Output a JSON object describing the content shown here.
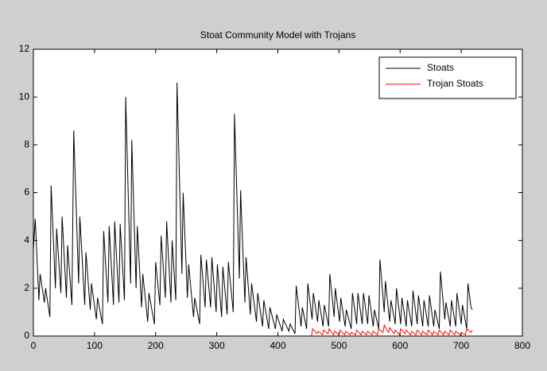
{
  "chart_data": {
    "type": "line",
    "title": "Stoat Community Model with Trojans",
    "xlim": [
      0,
      800
    ],
    "xticks": [
      0,
      100,
      200,
      300,
      400,
      500,
      600,
      700,
      800
    ],
    "ylim": [
      0,
      12
    ],
    "yticks": [
      0,
      2,
      4,
      6,
      8,
      10,
      12
    ],
    "legend": "northeast",
    "series": [
      {
        "name": "Stoats",
        "color": "#000000",
        "x": [
          0,
          3,
          9,
          11,
          18,
          20,
          27,
          29,
          36,
          38,
          45,
          47,
          54,
          56,
          63,
          66,
          74,
          76,
          84,
          86,
          93,
          95,
          103,
          105,
          113,
          115,
          122,
          124,
          131,
          133,
          140,
          142,
          149,
          151,
          159,
          161,
          168,
          170,
          177,
          179,
          187,
          189,
          198,
          200,
          207,
          209,
          216,
          218,
          225,
          227,
          233,
          235,
          243,
          245,
          252,
          254,
          262,
          264,
          272,
          274,
          281,
          283,
          290,
          292,
          299,
          301,
          308,
          310,
          317,
          319,
          327,
          329,
          337,
          339,
          346,
          348,
          355,
          357,
          365,
          367,
          375,
          377,
          385,
          387,
          396,
          398,
          407,
          409,
          418,
          420,
          428,
          430,
          438,
          440,
          447,
          449,
          456,
          458,
          465,
          467,
          474,
          476,
          483,
          485,
          492,
          494,
          501,
          503,
          510,
          512,
          520,
          522,
          529,
          531,
          538,
          540,
          547,
          549,
          556,
          558,
          565,
          567,
          574,
          576,
          583,
          585,
          592,
          594,
          601,
          603,
          610,
          612,
          619,
          621,
          628,
          630,
          637,
          639,
          646,
          648,
          655,
          657,
          664,
          666,
          673,
          675,
          682,
          684,
          691,
          693,
          700,
          702,
          709,
          711,
          716,
          718
        ],
        "values": [
          3.6,
          4.9,
          1.5,
          2.6,
          1.4,
          2.0,
          0.8,
          6.3,
          2.0,
          4.5,
          1.8,
          5.0,
          1.6,
          3.8,
          1.3,
          8.6,
          2.2,
          5.0,
          1.3,
          3.5,
          1.1,
          2.2,
          0.7,
          1.6,
          0.5,
          4.4,
          1.4,
          4.6,
          1.3,
          4.8,
          1.4,
          4.7,
          1.5,
          10.0,
          2.2,
          8.2,
          2.0,
          4.6,
          1.2,
          2.6,
          0.6,
          1.8,
          0.5,
          3.1,
          1.3,
          4.2,
          1.6,
          4.8,
          1.4,
          4.0,
          1.5,
          10.6,
          2.6,
          6.0,
          1.6,
          3.0,
          0.8,
          1.6,
          0.5,
          3.4,
          1.2,
          3.2,
          1.2,
          3.3,
          1.0,
          3.0,
          0.8,
          2.9,
          0.9,
          3.1,
          1.0,
          9.3,
          2.4,
          6.1,
          1.4,
          3.3,
          0.9,
          2.2,
          0.6,
          1.8,
          0.4,
          1.5,
          0.3,
          1.2,
          0.3,
          0.9,
          0.2,
          0.7,
          0.2,
          0.5,
          0.1,
          2.1,
          0.4,
          1.2,
          0.3,
          2.2,
          0.7,
          1.8,
          0.6,
          1.5,
          0.4,
          1.3,
          0.4,
          2.6,
          0.8,
          2.0,
          0.6,
          1.6,
          0.4,
          1.1,
          0.3,
          1.8,
          0.5,
          1.8,
          0.5,
          1.8,
          0.5,
          1.7,
          0.4,
          1.1,
          0.3,
          3.2,
          1.0,
          2.3,
          0.6,
          1.5,
          0.5,
          2.0,
          0.5,
          1.6,
          0.4,
          1.5,
          0.4,
          1.9,
          0.5,
          1.7,
          0.4,
          1.5,
          0.4,
          1.7,
          0.4,
          1.1,
          0.3,
          2.7,
          0.7,
          1.4,
          0.4,
          1.5,
          0.4,
          1.8,
          0.5,
          1.3,
          0.3,
          2.2,
          1.2,
          1.1
        ]
      },
      {
        "name": "Trojan Stoats",
        "color": "#ff0000",
        "x": [
          0,
          455,
          457,
          464,
          466,
          473,
          475,
          482,
          484,
          491,
          493,
          500,
          502,
          509,
          511,
          518,
          520,
          527,
          529,
          536,
          538,
          545,
          547,
          554,
          556,
          563,
          565,
          572,
          574,
          581,
          583,
          590,
          592,
          599,
          601,
          608,
          610,
          617,
          619,
          626,
          628,
          635,
          637,
          644,
          646,
          653,
          655,
          662,
          664,
          671,
          673,
          680,
          682,
          689,
          691,
          698,
          700,
          707,
          709,
          716,
          718
        ],
        "values": [
          0,
          0,
          0.3,
          0.1,
          0.2,
          0.05,
          0.25,
          0.1,
          0.3,
          0.05,
          0.2,
          0.05,
          0.25,
          0.05,
          0.2,
          0.05,
          0.15,
          0.05,
          0.25,
          0.05,
          0.2,
          0.05,
          0.2,
          0.05,
          0.2,
          0.05,
          0.3,
          0.15,
          0.45,
          0.15,
          0.35,
          0.1,
          0.25,
          0.05,
          0.3,
          0.1,
          0.25,
          0.05,
          0.2,
          0.05,
          0.25,
          0.05,
          0.2,
          0.05,
          0.25,
          0.05,
          0.2,
          0.05,
          0.25,
          0.05,
          0.2,
          0.05,
          0.25,
          0.05,
          0.2,
          0.05,
          0.15,
          0.05,
          0.3,
          0.15,
          0.25
        ]
      }
    ]
  }
}
